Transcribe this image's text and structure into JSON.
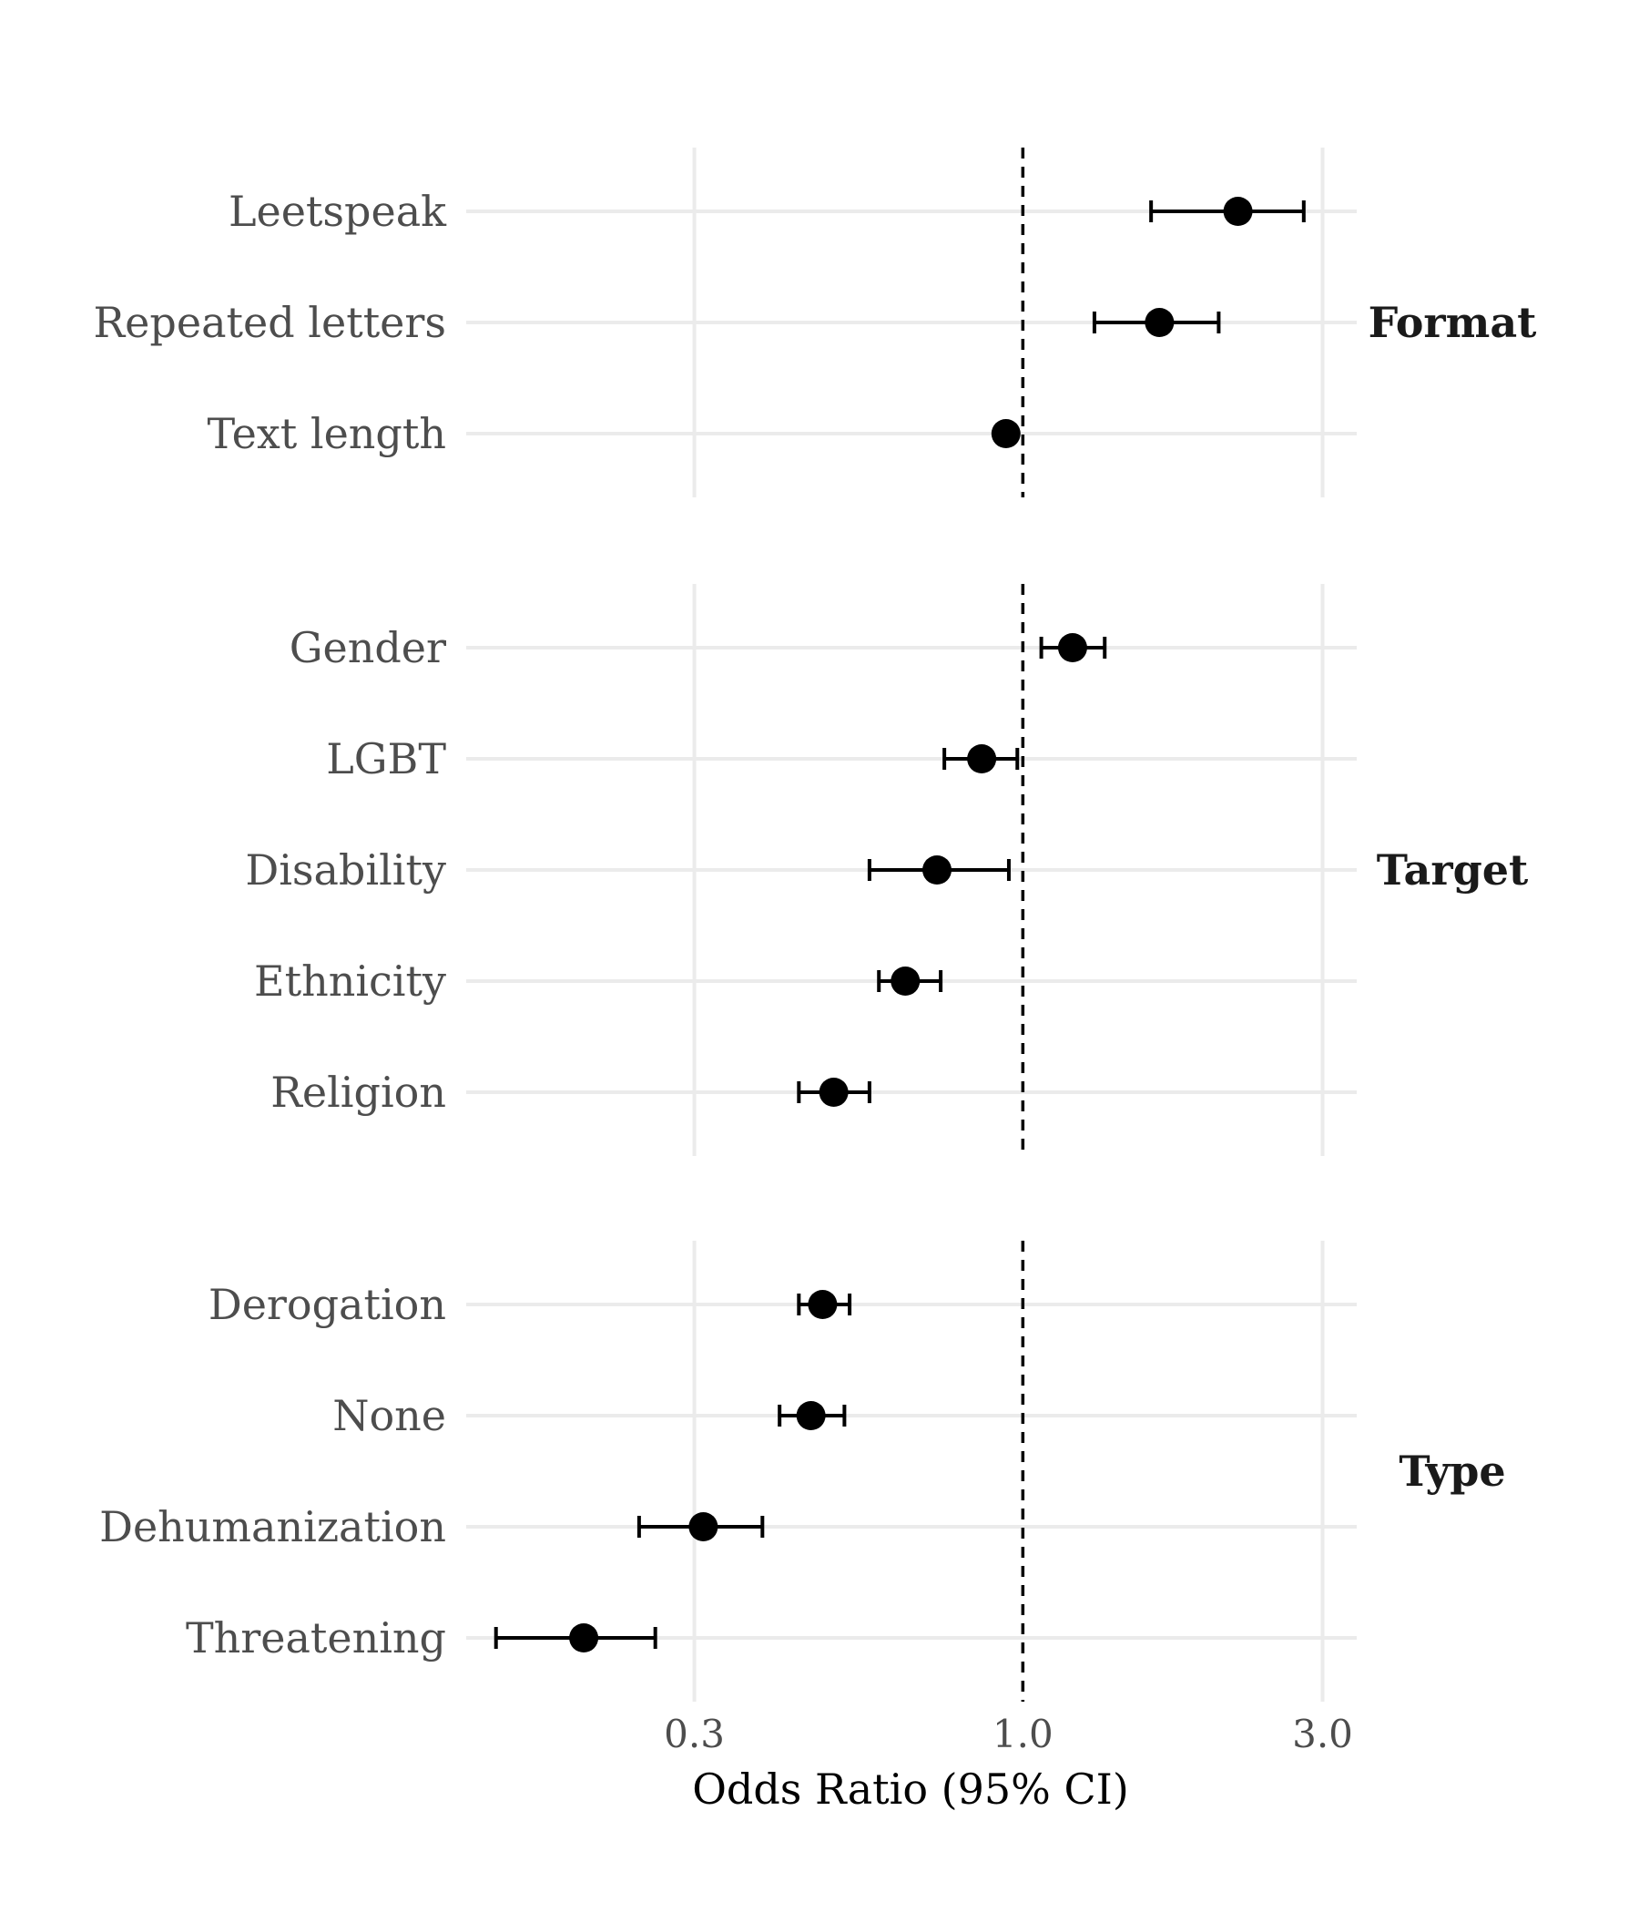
{
  "chart_data": {
    "type": "scatter",
    "subtype": "forest-plot",
    "xlabel": "Odds Ratio (95% CI)",
    "x_scale": "log",
    "xlim": [
      0.13,
      3.4
    ],
    "x_ticks": [
      {
        "value": 0.3,
        "label": "0.3"
      },
      {
        "value": 1.0,
        "label": "1.0"
      },
      {
        "value": 3.0,
        "label": "3.0"
      }
    ],
    "reference_line": {
      "value": 1.0,
      "style": "dashed"
    },
    "grid": true,
    "colors": {
      "point": "#000000",
      "grid": "#ebebeb",
      "reference": "#000000"
    },
    "facets": [
      {
        "name": "Format",
        "items": [
          {
            "label": "Leetspeak",
            "or": 2.2,
            "lo": 1.6,
            "hi": 2.8
          },
          {
            "label": "Repeated letters",
            "or": 1.65,
            "lo": 1.3,
            "hi": 2.05
          },
          {
            "label": "Text length",
            "or": 0.94,
            "lo": null,
            "hi": null
          }
        ]
      },
      {
        "name": "Target",
        "items": [
          {
            "label": "Gender",
            "or": 1.2,
            "lo": 1.07,
            "hi": 1.35
          },
          {
            "label": "LGBT",
            "or": 0.86,
            "lo": 0.75,
            "hi": 0.98
          },
          {
            "label": "Disability",
            "or": 0.73,
            "lo": 0.57,
            "hi": 0.95
          },
          {
            "label": "Ethnicity",
            "or": 0.65,
            "lo": 0.59,
            "hi": 0.74
          },
          {
            "label": "Religion",
            "or": 0.5,
            "lo": 0.44,
            "hi": 0.57
          }
        ]
      },
      {
        "name": "Type",
        "items": [
          {
            "label": "Derogation",
            "or": 0.48,
            "lo": 0.44,
            "hi": 0.53
          },
          {
            "label": "None",
            "or": 0.46,
            "lo": 0.41,
            "hi": 0.52
          },
          {
            "label": "Dehumanization",
            "or": 0.31,
            "lo": 0.245,
            "hi": 0.385
          },
          {
            "label": "Threatening",
            "or": 0.2,
            "lo": 0.145,
            "hi": 0.26
          }
        ]
      }
    ]
  }
}
